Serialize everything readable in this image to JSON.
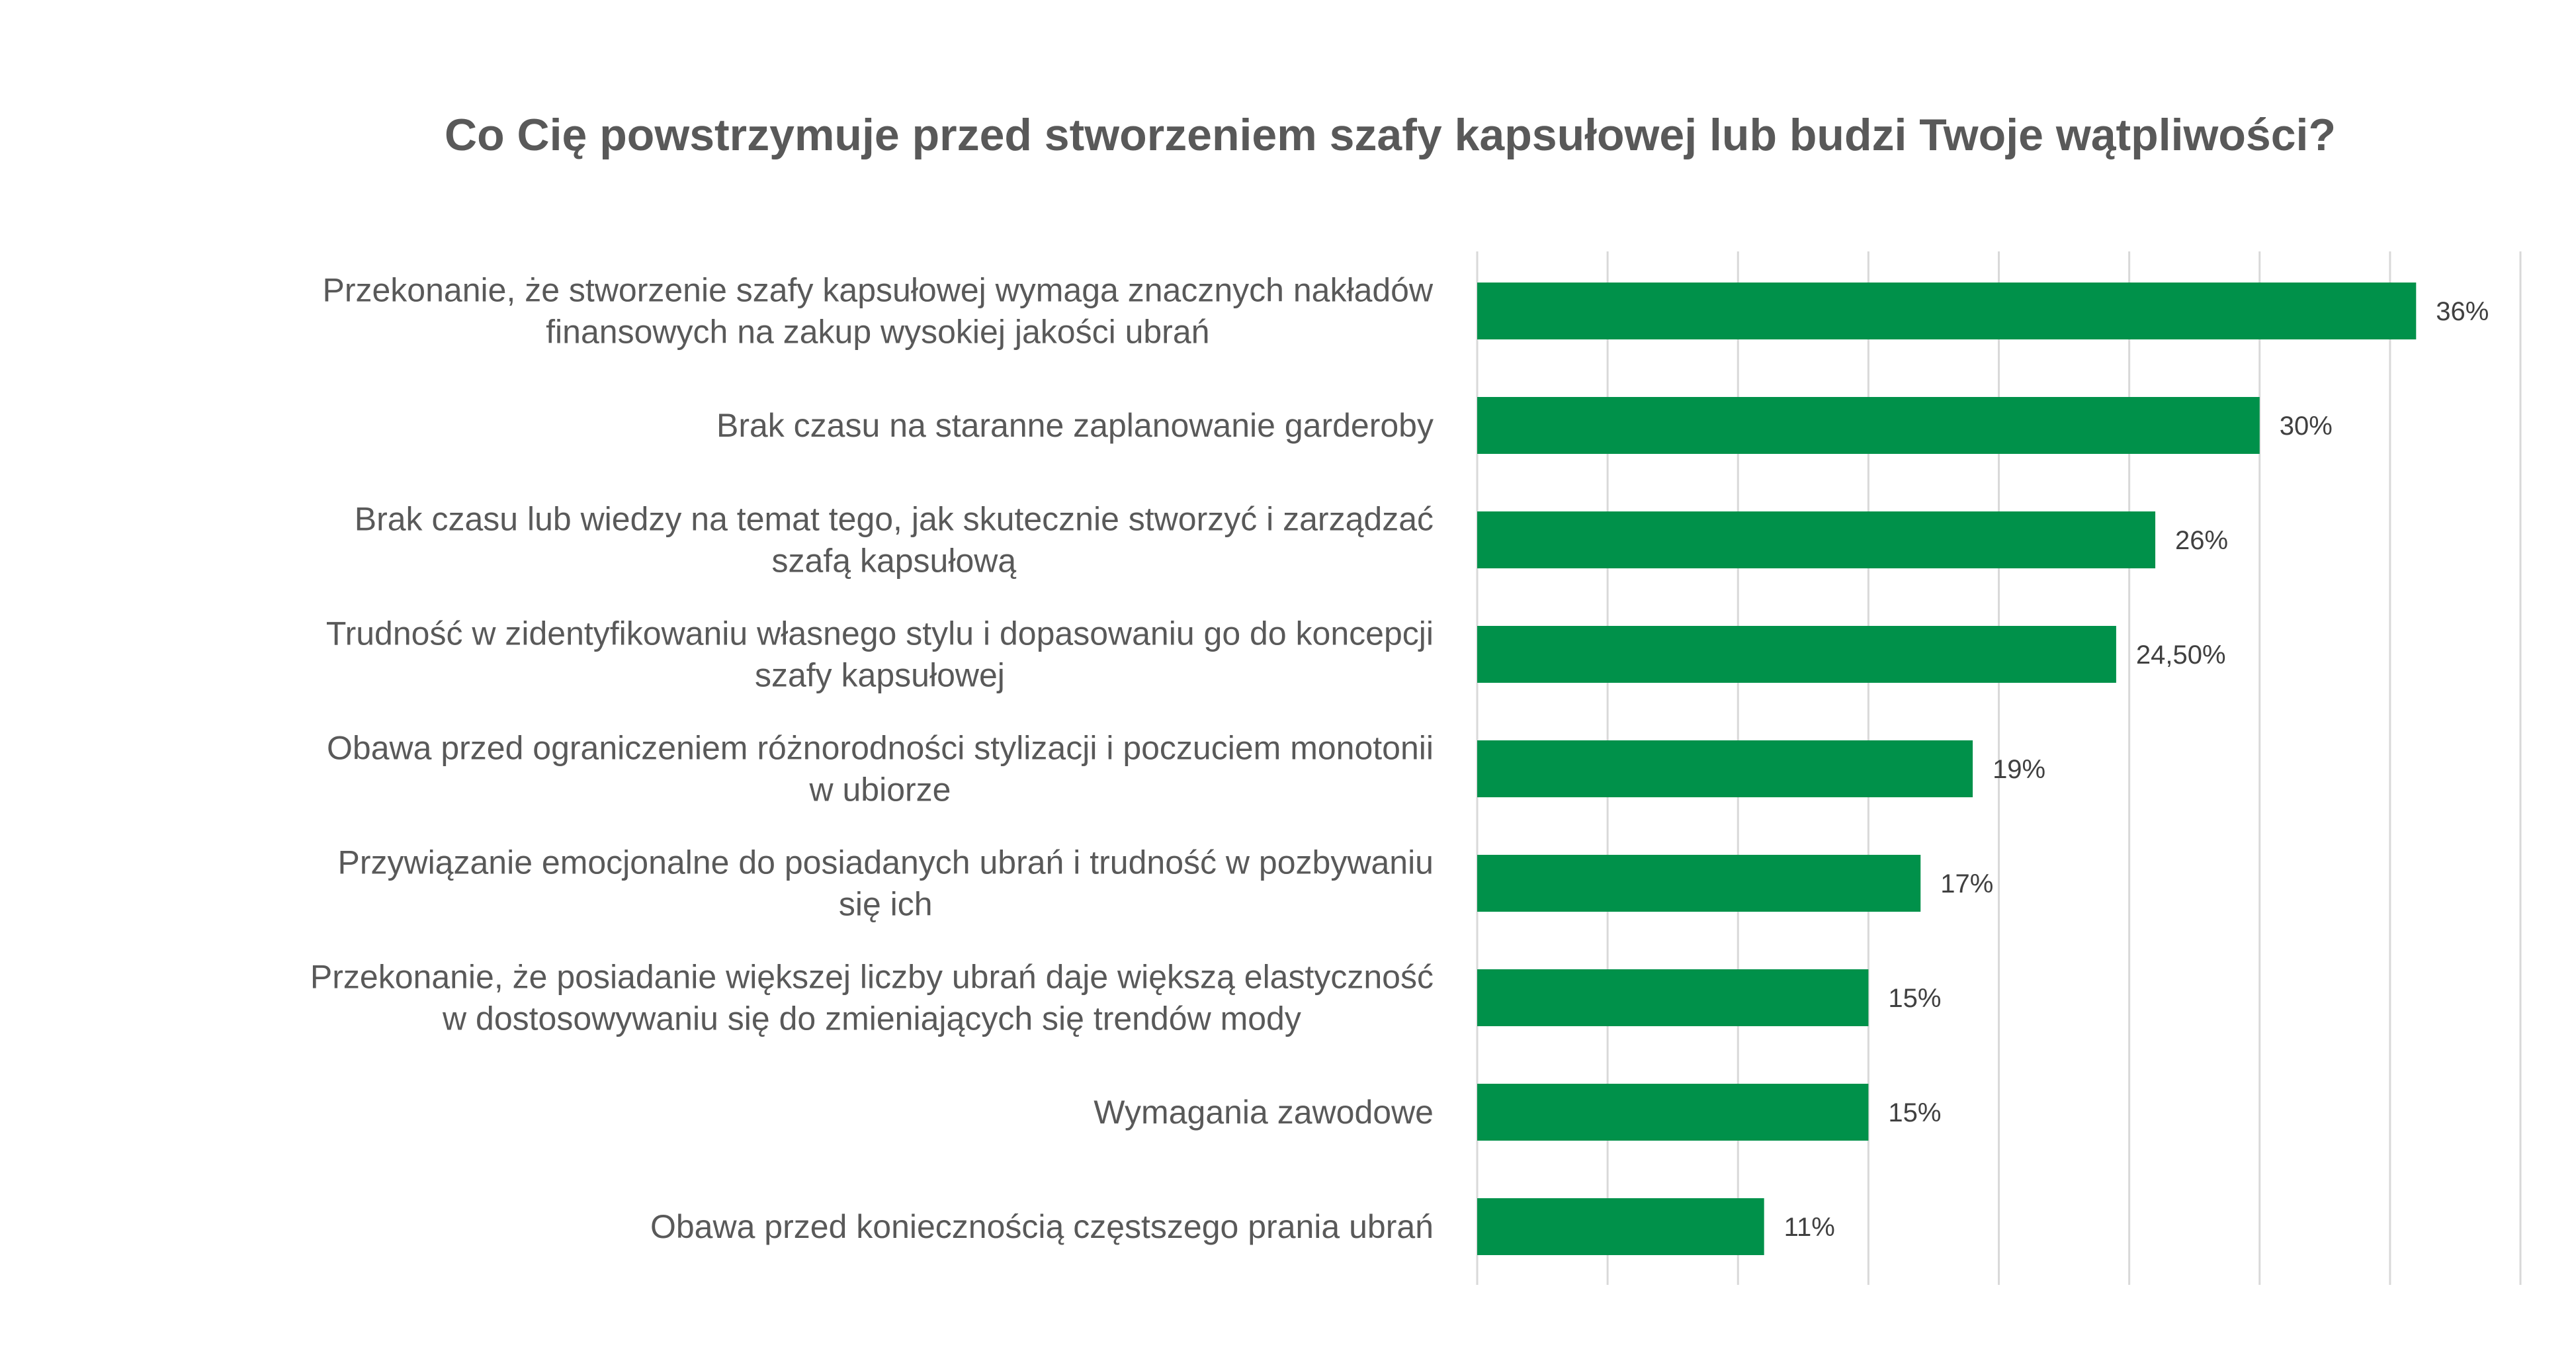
{
  "chart_data": {
    "type": "bar",
    "orientation": "horizontal",
    "title": "Co Cię powstrzymuje przed stworzeniem szafy kapsułowej lub budzi Twoje wątpliwości?",
    "categories": [
      [
        "Przekonanie, że stworzenie szafy kapsułowej wymaga znacznych nakładów",
        "finansowych na zakup wysokiej jakości ubrań"
      ],
      [
        "Brak czasu na staranne zaplanowanie garderoby"
      ],
      [
        "Brak czasu lub wiedzy na temat tego, jak skutecznie stworzyć i zarządzać",
        "szafą kapsułową"
      ],
      [
        "Trudność w zidentyfikowaniu własnego stylu i dopasowaniu go do koncepcji",
        "szafy kapsułowej"
      ],
      [
        "Obawa przed ograniczeniem różnorodności stylizacji i poczuciem monotonii",
        "w ubiorze"
      ],
      [
        "Przywiązanie emocjonalne do posiadanych ubrań i trudność w pozbywaniu",
        "się ich"
      ],
      [
        "Przekonanie, że posiadanie większej liczby ubrań daje większą elastyczność",
        "w dostosowywaniu się do zmieniających się trendów mody"
      ],
      [
        "Wymagania zawodowe"
      ],
      [
        "Obawa przed koniecznością częstszego prania ubrań"
      ]
    ],
    "values": [
      36,
      30,
      26,
      24.5,
      19,
      17,
      15,
      15,
      11
    ],
    "data_labels": [
      "36%",
      "30%",
      "26%",
      "24,50%",
      "19%",
      "17%",
      "15%",
      "15%",
      "11%"
    ],
    "xlim": [
      0,
      40
    ],
    "grid": true,
    "bar_color": "#00914A",
    "grid_color": "#D9D9D9"
  }
}
